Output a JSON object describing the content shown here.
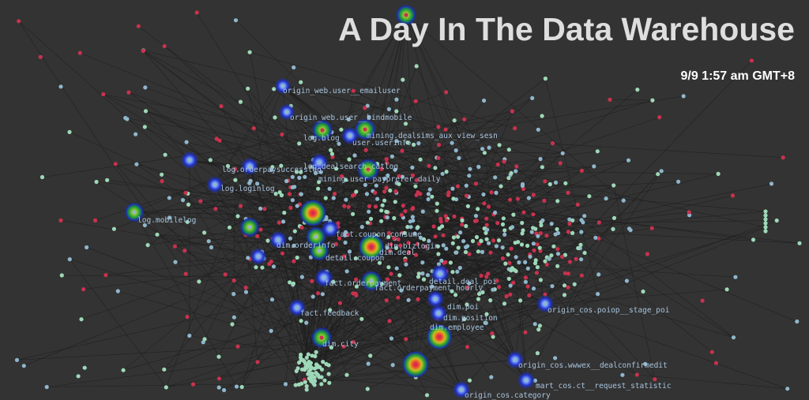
{
  "header": {
    "title": "A Day In The Data Warehouse",
    "timestamp": "9/9 1:57 am GMT+8"
  },
  "colors": {
    "background": "#333333",
    "edge": "#1e1e1e",
    "node_green": "#9ed8b8",
    "node_blue": "#8fb6cc",
    "node_red": "#c8324e",
    "label": "#a9c4de"
  },
  "tables": [
    {
      "label": "origin_web.user__emailuser"
    },
    {
      "label": "origin_web.user__bindmobile"
    },
    {
      "label": "log.blog"
    },
    {
      "label": "mining.dealsims_aux_view_sesn"
    },
    {
      "label": "user.userinfo"
    },
    {
      "label": "log.dealsearch_catlog"
    },
    {
      "label": "log.orderpaysuccesslog"
    },
    {
      "label": "log.loginlog"
    },
    {
      "label": "mining.user_payprefer_daily"
    },
    {
      "label": "log.mobilelog"
    },
    {
      "label": "fact.coupon_consume"
    },
    {
      "label": "dim.orderinfo"
    },
    {
      "label": "dim.bizlogin"
    },
    {
      "label": "dim.deal"
    },
    {
      "label": "detail.coupon"
    },
    {
      "label": "fact.orderpayment"
    },
    {
      "label": "detail.deal_poi"
    },
    {
      "label": "fact.orderpayment_hourly"
    },
    {
      "label": "dim.poi"
    },
    {
      "label": "dim.position"
    },
    {
      "label": "fact.feedback"
    },
    {
      "label": "dim.employee"
    },
    {
      "label": "dim.city"
    },
    {
      "label": "origin_cos.poiop__stage_poi"
    },
    {
      "label": "origin_cos.wwwex__dealconfirmedit"
    },
    {
      "label": "mart_cos.ct__request_statistic"
    },
    {
      "label": "origin_cos.category"
    }
  ]
}
